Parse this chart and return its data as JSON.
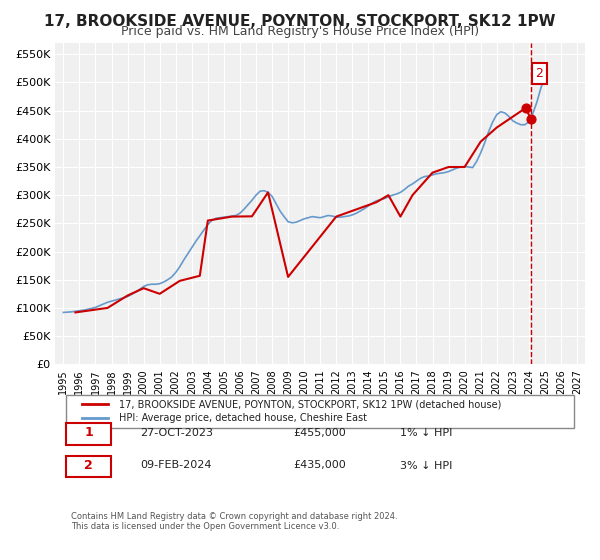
{
  "title": "17, BROOKSIDE AVENUE, POYNTON, STOCKPORT, SK12 1PW",
  "subtitle": "Price paid vs. HM Land Registry's House Price Index (HPI)",
  "title_fontsize": 11,
  "subtitle_fontsize": 9,
  "background_color": "#ffffff",
  "plot_bg_color": "#f0f0f0",
  "grid_color": "#ffffff",
  "hpi_color": "#6699cc",
  "price_color": "#cc0000",
  "vline_color": "#cc0000",
  "annotation_box_color": "#cc0000",
  "xlabel": "",
  "ylabel": "",
  "ylim": [
    0,
    570000
  ],
  "yticks": [
    0,
    50000,
    100000,
    150000,
    200000,
    250000,
    300000,
    350000,
    400000,
    450000,
    500000,
    550000
  ],
  "ytick_labels": [
    "£0",
    "£50K",
    "£100K",
    "£150K",
    "£200K",
    "£250K",
    "£300K",
    "£350K",
    "£400K",
    "£450K",
    "£500K",
    "£550K"
  ],
  "xmin": 1994.5,
  "xmax": 2027.5,
  "xticks": [
    1995,
    1996,
    1997,
    1998,
    1999,
    2000,
    2001,
    2002,
    2003,
    2004,
    2005,
    2006,
    2007,
    2008,
    2009,
    2010,
    2011,
    2012,
    2013,
    2014,
    2015,
    2016,
    2017,
    2018,
    2019,
    2020,
    2021,
    2022,
    2023,
    2024,
    2025,
    2026,
    2027
  ],
  "legend_entry1": "17, BROOKSIDE AVENUE, POYNTON, STOCKPORT, SK12 1PW (detached house)",
  "legend_entry2": "HPI: Average price, detached house, Cheshire East",
  "sale1_date": "27-OCT-2023",
  "sale1_price": "£455,000",
  "sale1_hpi": "1% ↓ HPI",
  "sale1_x": 2023.82,
  "sale1_y": 455000,
  "sale2_date": "09-FEB-2024",
  "sale2_price": "£435,000",
  "sale2_hpi": "3% ↓ HPI",
  "sale2_x": 2024.11,
  "sale2_y": 435000,
  "vline_x": 2024.11,
  "footer_line1": "Contains HM Land Registry data © Crown copyright and database right 2024.",
  "footer_line2": "This data is licensed under the Open Government Licence v3.0.",
  "hpi_data_x": [
    1995.0,
    1995.25,
    1995.5,
    1995.75,
    1996.0,
    1996.25,
    1996.5,
    1996.75,
    1997.0,
    1997.25,
    1997.5,
    1997.75,
    1998.0,
    1998.25,
    1998.5,
    1998.75,
    1999.0,
    1999.25,
    1999.5,
    1999.75,
    2000.0,
    2000.25,
    2000.5,
    2000.75,
    2001.0,
    2001.25,
    2001.5,
    2001.75,
    2002.0,
    2002.25,
    2002.5,
    2002.75,
    2003.0,
    2003.25,
    2003.5,
    2003.75,
    2004.0,
    2004.25,
    2004.5,
    2004.75,
    2005.0,
    2005.25,
    2005.5,
    2005.75,
    2006.0,
    2006.25,
    2006.5,
    2006.75,
    2007.0,
    2007.25,
    2007.5,
    2007.75,
    2008.0,
    2008.25,
    2008.5,
    2008.75,
    2009.0,
    2009.25,
    2009.5,
    2009.75,
    2010.0,
    2010.25,
    2010.5,
    2010.75,
    2011.0,
    2011.25,
    2011.5,
    2011.75,
    2012.0,
    2012.25,
    2012.5,
    2012.75,
    2013.0,
    2013.25,
    2013.5,
    2013.75,
    2014.0,
    2014.25,
    2014.5,
    2014.75,
    2015.0,
    2015.25,
    2015.5,
    2015.75,
    2016.0,
    2016.25,
    2016.5,
    2016.75,
    2017.0,
    2017.25,
    2017.5,
    2017.75,
    2018.0,
    2018.25,
    2018.5,
    2018.75,
    2019.0,
    2019.25,
    2019.5,
    2019.75,
    2020.0,
    2020.25,
    2020.5,
    2020.75,
    2021.0,
    2021.25,
    2021.5,
    2021.75,
    2022.0,
    2022.25,
    2022.5,
    2022.75,
    2023.0,
    2023.25,
    2023.5,
    2023.75,
    2024.0,
    2024.25,
    2024.5,
    2024.75,
    2025.0
  ],
  "hpi_data_y": [
    92000,
    92500,
    93000,
    94000,
    95000,
    96000,
    97500,
    99000,
    101000,
    104000,
    107000,
    110000,
    112000,
    114000,
    116000,
    118000,
    120000,
    124000,
    128000,
    133000,
    138000,
    141000,
    142000,
    142000,
    143000,
    146000,
    150000,
    155000,
    163000,
    173000,
    185000,
    196000,
    207000,
    218000,
    228000,
    238000,
    248000,
    255000,
    259000,
    260000,
    261000,
    262000,
    263000,
    264000,
    268000,
    275000,
    283000,
    291000,
    300000,
    307000,
    308000,
    305000,
    298000,
    285000,
    272000,
    262000,
    253000,
    251000,
    252000,
    255000,
    258000,
    260000,
    262000,
    261000,
    260000,
    262000,
    264000,
    263000,
    261000,
    261000,
    262000,
    263000,
    265000,
    268000,
    272000,
    276000,
    281000,
    286000,
    290000,
    292000,
    294000,
    297000,
    300000,
    302000,
    305000,
    310000,
    316000,
    320000,
    325000,
    330000,
    333000,
    334000,
    336000,
    338000,
    339000,
    340000,
    342000,
    345000,
    348000,
    350000,
    351000,
    350000,
    349000,
    360000,
    375000,
    393000,
    413000,
    430000,
    443000,
    448000,
    446000,
    440000,
    432000,
    428000,
    425000,
    425000,
    430000,
    445000,
    465000,
    490000,
    510000
  ],
  "price_data_x": [
    1995.75,
    1997.75,
    1999.0,
    2000.0,
    2001.0,
    2002.25,
    2003.5,
    2004.0,
    2005.5,
    2006.75,
    2007.75,
    2009.0,
    2012.0,
    2014.5,
    2015.25,
    2016.0,
    2016.75,
    2018.0,
    2019.0,
    2020.0,
    2021.0,
    2022.0,
    2023.82,
    2024.11
  ],
  "price_data_y": [
    92000,
    100000,
    122000,
    135000,
    125000,
    148000,
    157000,
    255000,
    262000,
    262500,
    305000,
    155000,
    262000,
    287500,
    300000,
    262000,
    300000,
    340000,
    350000,
    350000,
    395000,
    420000,
    455000,
    435000
  ]
}
